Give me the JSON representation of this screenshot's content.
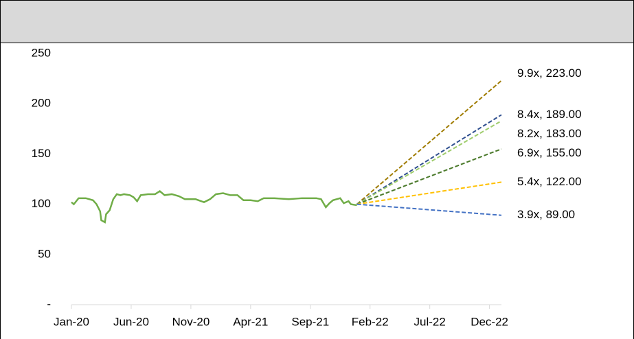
{
  "chart_data": {
    "type": "line",
    "xlim": [
      0,
      36
    ],
    "xticks": [
      {
        "value": 0,
        "label": "Jan-20"
      },
      {
        "value": 5,
        "label": "Jun-20"
      },
      {
        "value": 10,
        "label": "Nov-20"
      },
      {
        "value": 15,
        "label": "Apr-21"
      },
      {
        "value": 20,
        "label": "Sep-21"
      },
      {
        "value": 25,
        "label": "Feb-22"
      },
      {
        "value": 30,
        "label": "Jul-22"
      },
      {
        "value": 35,
        "label": "Dec-22"
      }
    ],
    "ylim": [
      0,
      250
    ],
    "yticks": [
      {
        "value": 0,
        "label": "-"
      },
      50,
      100,
      150,
      200,
      250
    ],
    "series": [
      {
        "color": "#70ad47",
        "dashed": false,
        "x": [
          0,
          0.2,
          0.6,
          1.2,
          1.8,
          2.1,
          2.4,
          2.5,
          2.8,
          2.9,
          3.2,
          3.5,
          3.8,
          4.1,
          4.4,
          4.9,
          5.2,
          5.5,
          5.8,
          6.4,
          7.0,
          7.4,
          7.8,
          8.4,
          9.0,
          9.5,
          10.4,
          11.1,
          11.6,
          12.1,
          12.7,
          13.3,
          13.9,
          14.4,
          15.0,
          15.6,
          16.1,
          17.0,
          18.2,
          19.3,
          20.5,
          20.9,
          21.3,
          21.6,
          21.9,
          22.5,
          22.8,
          23.2,
          23.4,
          23.9
        ],
        "values": [
          102,
          100,
          106,
          106,
          104,
          100,
          93,
          84,
          82,
          90,
          94,
          105,
          110,
          109,
          110,
          109,
          107,
          103,
          109,
          110,
          110,
          113,
          109,
          110,
          108,
          105,
          105,
          102,
          105,
          110,
          111,
          109,
          109,
          104,
          104,
          103,
          106,
          106,
          105,
          106,
          106,
          105,
          97,
          101,
          104,
          106,
          101,
          103,
          100,
          99
        ]
      },
      {
        "color": "#a07c00",
        "dashed": true,
        "x": [
          23.9,
          36
        ],
        "values": [
          100,
          223
        ],
        "value_labels": [
          null,
          "9.9x,  223.00"
        ]
      },
      {
        "color": "#2f4f8f",
        "dashed": true,
        "x": [
          23.9,
          36
        ],
        "values": [
          100,
          189
        ],
        "value_labels": [
          null,
          "8.4x,  189.00"
        ]
      },
      {
        "color": "#9fcc6c",
        "dashed": true,
        "x": [
          23.9,
          36
        ],
        "values": [
          100,
          183
        ],
        "value_labels": [
          null,
          "8.2x,  183.00"
        ]
      },
      {
        "color": "#4b7a2b",
        "dashed": true,
        "x": [
          23.9,
          36
        ],
        "values": [
          100,
          155
        ],
        "value_labels": [
          null,
          "6.9x,  155.00"
        ]
      },
      {
        "color": "#ffc000",
        "dashed": true,
        "x": [
          23.9,
          36
        ],
        "values": [
          100,
          122
        ],
        "value_labels": [
          null,
          "5.4x,  122.00"
        ]
      },
      {
        "color": "#4472c4",
        "dashed": true,
        "x": [
          23.9,
          36
        ],
        "values": [
          100,
          89
        ],
        "value_labels": [
          null,
          "3.9x,  89.00"
        ]
      }
    ]
  }
}
